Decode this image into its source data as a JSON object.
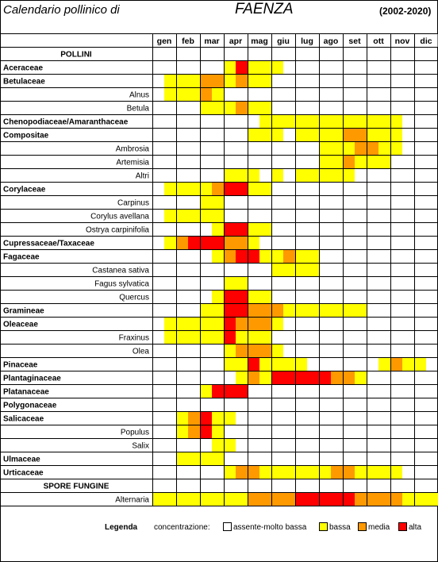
{
  "header": {
    "title": "Calendario pollinico di",
    "city": "FAENZA",
    "years": "(2002-2020)"
  },
  "chart_data": {
    "type": "heatmap",
    "months": [
      "gen",
      "feb",
      "mar",
      "apr",
      "mag",
      "giu",
      "lug",
      "ago",
      "set",
      "ott",
      "nov",
      "dic"
    ],
    "levels": {
      "0": "assente-molto bassa",
      "1": "bassa",
      "2": "media",
      "3": "alta"
    },
    "colors": {
      "0": "#ffffff",
      "1": "#ffff00",
      "2": "#ff9900",
      "3": "#ff0000"
    },
    "rows": [
      {
        "label": "POLLINI",
        "kind": "section"
      },
      {
        "label": "Aceraceae",
        "kind": "family",
        "cells": [
          0,
          0,
          0,
          0,
          0,
          0,
          1,
          3,
          1,
          1,
          1,
          0,
          0,
          0,
          0,
          0,
          0,
          0,
          0,
          0,
          0,
          0,
          0,
          0
        ]
      },
      {
        "label": "Betulaceae",
        "kind": "family",
        "cells": [
          0,
          1,
          1,
          1,
          2,
          2,
          1,
          2,
          1,
          1,
          0,
          0,
          0,
          0,
          0,
          0,
          0,
          0,
          0,
          0,
          0,
          0,
          0,
          0
        ]
      },
      {
        "label": "Alnus",
        "kind": "sub",
        "cells": [
          0,
          1,
          1,
          1,
          2,
          1,
          0,
          0,
          0,
          0,
          0,
          0,
          0,
          0,
          0,
          0,
          0,
          0,
          0,
          0,
          0,
          0,
          0,
          0
        ]
      },
      {
        "label": "Betula",
        "kind": "sub",
        "cells": [
          0,
          0,
          0,
          0,
          1,
          1,
          1,
          2,
          1,
          1,
          0,
          0,
          0,
          0,
          0,
          0,
          0,
          0,
          0,
          0,
          0,
          0,
          0,
          0
        ]
      },
      {
        "label": "Chenopodiaceae/Amaranthaceae",
        "kind": "family",
        "cells": [
          0,
          0,
          0,
          0,
          0,
          0,
          0,
          0,
          0,
          1,
          1,
          1,
          1,
          1,
          1,
          1,
          1,
          1,
          1,
          1,
          1,
          0,
          0,
          0
        ]
      },
      {
        "label": "Compositae",
        "kind": "family",
        "cells": [
          0,
          0,
          0,
          0,
          0,
          0,
          0,
          0,
          1,
          1,
          1,
          0,
          1,
          1,
          1,
          1,
          2,
          2,
          1,
          1,
          1,
          0,
          0,
          0
        ]
      },
      {
        "label": "Ambrosia",
        "kind": "sub",
        "cells": [
          0,
          0,
          0,
          0,
          0,
          0,
          0,
          0,
          0,
          0,
          0,
          0,
          0,
          0,
          1,
          1,
          1,
          2,
          2,
          1,
          1,
          0,
          0,
          0
        ]
      },
      {
        "label": "Artemisia",
        "kind": "sub",
        "cells": [
          0,
          0,
          0,
          0,
          0,
          0,
          0,
          0,
          0,
          0,
          0,
          0,
          0,
          0,
          1,
          1,
          2,
          1,
          1,
          1,
          0,
          0,
          0,
          0
        ]
      },
      {
        "label": "Altri",
        "kind": "sub",
        "cells": [
          0,
          0,
          0,
          0,
          0,
          0,
          1,
          1,
          1,
          0,
          1,
          0,
          1,
          1,
          1,
          1,
          1,
          0,
          0,
          0,
          0,
          0,
          0,
          0
        ]
      },
      {
        "label": "Corylaceae",
        "kind": "family",
        "cells": [
          0,
          1,
          1,
          1,
          1,
          2,
          3,
          3,
          1,
          1,
          0,
          0,
          0,
          0,
          0,
          0,
          0,
          0,
          0,
          0,
          0,
          0,
          0,
          0
        ]
      },
      {
        "label": "Carpinus",
        "kind": "sub",
        "cells": [
          0,
          0,
          0,
          0,
          1,
          1,
          0,
          0,
          0,
          0,
          0,
          0,
          0,
          0,
          0,
          0,
          0,
          0,
          0,
          0,
          0,
          0,
          0,
          0
        ]
      },
      {
        "label": "Corylus avellana",
        "kind": "sub",
        "cells": [
          0,
          1,
          1,
          1,
          1,
          1,
          0,
          0,
          0,
          0,
          0,
          0,
          0,
          0,
          0,
          0,
          0,
          0,
          0,
          0,
          0,
          0,
          0,
          0
        ]
      },
      {
        "label": "Ostrya carpinifolia",
        "kind": "sub",
        "cells": [
          0,
          0,
          0,
          0,
          0,
          1,
          3,
          3,
          1,
          1,
          0,
          0,
          0,
          0,
          0,
          0,
          0,
          0,
          0,
          0,
          0,
          0,
          0,
          0
        ]
      },
      {
        "label": "Cupressaceae/Taxaceae",
        "kind": "family",
        "cells": [
          0,
          1,
          2,
          3,
          3,
          3,
          2,
          2,
          1,
          0,
          0,
          0,
          0,
          0,
          0,
          0,
          0,
          0,
          0,
          0,
          0,
          0,
          0,
          0
        ]
      },
      {
        "label": "Fagaceae",
        "kind": "family",
        "cells": [
          0,
          0,
          0,
          0,
          0,
          1,
          2,
          3,
          3,
          1,
          1,
          2,
          1,
          1,
          0,
          0,
          0,
          0,
          0,
          0,
          0,
          0,
          0,
          0
        ]
      },
      {
        "label": "Castanea sativa",
        "kind": "sub",
        "cells": [
          0,
          0,
          0,
          0,
          0,
          0,
          0,
          0,
          0,
          0,
          1,
          1,
          1,
          1,
          0,
          0,
          0,
          0,
          0,
          0,
          0,
          0,
          0,
          0
        ]
      },
      {
        "label": "Fagus sylvatica",
        "kind": "sub",
        "cells": [
          0,
          0,
          0,
          0,
          0,
          0,
          1,
          1,
          0,
          0,
          0,
          0,
          0,
          0,
          0,
          0,
          0,
          0,
          0,
          0,
          0,
          0,
          0,
          0
        ]
      },
      {
        "label": "Quercus",
        "kind": "sub",
        "cells": [
          0,
          0,
          0,
          0,
          0,
          1,
          3,
          3,
          1,
          1,
          0,
          0,
          0,
          0,
          0,
          0,
          0,
          0,
          0,
          0,
          0,
          0,
          0,
          0
        ]
      },
      {
        "label": "Gramineae",
        "kind": "family",
        "cells": [
          0,
          0,
          0,
          0,
          1,
          1,
          3,
          3,
          2,
          2,
          2,
          1,
          1,
          1,
          1,
          1,
          1,
          1,
          0,
          0,
          0,
          0,
          0,
          0
        ]
      },
      {
        "label": "Oleaceae",
        "kind": "family",
        "cells": [
          0,
          1,
          1,
          1,
          1,
          1,
          3,
          2,
          2,
          2,
          1,
          0,
          0,
          0,
          0,
          0,
          0,
          0,
          0,
          0,
          0,
          0,
          0,
          0
        ]
      },
      {
        "label": "Fraxinus",
        "kind": "sub",
        "cells": [
          0,
          1,
          1,
          1,
          1,
          1,
          3,
          1,
          1,
          1,
          0,
          0,
          0,
          0,
          0,
          0,
          0,
          0,
          0,
          0,
          0,
          0,
          0,
          0
        ]
      },
      {
        "label": "Olea",
        "kind": "sub",
        "cells": [
          0,
          0,
          0,
          0,
          0,
          0,
          1,
          2,
          2,
          2,
          1,
          0,
          0,
          0,
          0,
          0,
          0,
          0,
          0,
          0,
          0,
          0,
          0,
          0
        ]
      },
      {
        "label": "Pinaceae",
        "kind": "family",
        "cells": [
          0,
          0,
          0,
          0,
          0,
          0,
          1,
          1,
          3,
          1,
          1,
          1,
          1,
          0,
          0,
          0,
          0,
          0,
          0,
          1,
          2,
          1,
          1,
          0
        ]
      },
      {
        "label": "Plantaginaceae",
        "kind": "family",
        "cells": [
          0,
          0,
          0,
          0,
          0,
          0,
          0,
          1,
          2,
          1,
          3,
          3,
          3,
          3,
          3,
          2,
          2,
          1,
          0,
          0,
          0,
          0,
          0,
          0
        ]
      },
      {
        "label": "Platanaceae",
        "kind": "family",
        "cells": [
          0,
          0,
          0,
          0,
          1,
          3,
          3,
          3,
          0,
          0,
          0,
          0,
          0,
          0,
          0,
          0,
          0,
          0,
          0,
          0,
          0,
          0,
          0,
          0
        ]
      },
      {
        "label": "Polygonaceae",
        "kind": "family",
        "cells": [
          0,
          0,
          0,
          0,
          0,
          0,
          0,
          0,
          0,
          0,
          0,
          0,
          0,
          0,
          0,
          0,
          0,
          0,
          0,
          0,
          0,
          0,
          0,
          0
        ]
      },
      {
        "label": "Salicaceae",
        "kind": "family",
        "cells": [
          0,
          0,
          1,
          2,
          3,
          1,
          1,
          0,
          0,
          0,
          0,
          0,
          0,
          0,
          0,
          0,
          0,
          0,
          0,
          0,
          0,
          0,
          0,
          0
        ]
      },
      {
        "label": "Populus",
        "kind": "sub",
        "cells": [
          0,
          0,
          1,
          2,
          3,
          1,
          0,
          0,
          0,
          0,
          0,
          0,
          0,
          0,
          0,
          0,
          0,
          0,
          0,
          0,
          0,
          0,
          0,
          0
        ]
      },
      {
        "label": "Salix",
        "kind": "sub",
        "cells": [
          0,
          0,
          0,
          0,
          0,
          1,
          1,
          0,
          0,
          0,
          0,
          0,
          0,
          0,
          0,
          0,
          0,
          0,
          0,
          0,
          0,
          0,
          0,
          0
        ]
      },
      {
        "label": "Ulmaceae",
        "kind": "family",
        "cells": [
          0,
          0,
          1,
          1,
          1,
          1,
          0,
          0,
          0,
          0,
          0,
          0,
          0,
          0,
          0,
          0,
          0,
          0,
          0,
          0,
          0,
          0,
          0,
          0
        ]
      },
      {
        "label": "Urticaceae",
        "kind": "family",
        "cells": [
          0,
          0,
          0,
          0,
          0,
          0,
          1,
          2,
          2,
          1,
          1,
          1,
          1,
          1,
          1,
          2,
          2,
          1,
          1,
          1,
          1,
          0,
          0,
          0
        ]
      },
      {
        "label": "SPORE FUNGINE",
        "kind": "section"
      },
      {
        "label": "Alternaria",
        "kind": "sub",
        "cells": [
          1,
          1,
          1,
          1,
          1,
          1,
          1,
          1,
          2,
          2,
          2,
          2,
          3,
          3,
          3,
          3,
          3,
          2,
          2,
          2,
          2,
          1,
          1,
          1
        ]
      }
    ]
  },
  "legend": {
    "title": "Legenda",
    "label": "concentrazione:",
    "items": [
      {
        "text": "assente-molto bassa",
        "color": "#ffffff"
      },
      {
        "text": "bassa",
        "color": "#ffff00"
      },
      {
        "text": "media",
        "color": "#ff9900"
      },
      {
        "text": "alta",
        "color": "#ff0000"
      }
    ]
  }
}
